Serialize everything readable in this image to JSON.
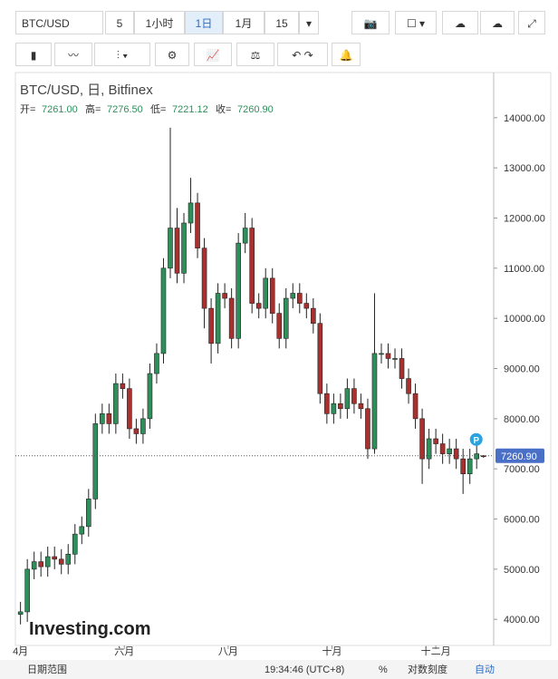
{
  "toolbar": {
    "symbol": "BTC/USD",
    "interval_1": "5",
    "interval_2": "1小时",
    "interval_3": "1日",
    "interval_4": "1月",
    "interval_5": "15"
  },
  "footer": {
    "date_range": "日期范围",
    "time": "19:34:46 (UTC+8)",
    "percent": "%",
    "log_scale": "对数刻度",
    "auto": "自动"
  },
  "watermark": "Investing.com",
  "chart_data": {
    "type": "candlestick",
    "title": "BTC/USD, 日, Bitfinex",
    "ohlc_header": [
      {
        "label": "开=",
        "value": "7261.00"
      },
      {
        "label": "高=",
        "value": "7276.50"
      },
      {
        "label": "低=",
        "value": "7221.12"
      },
      {
        "label": "收=",
        "value": "7260.90"
      }
    ],
    "last_price_label": "7260.90",
    "marker_label": "P",
    "up_color": "#2f8f5b",
    "down_color": "#a8312f",
    "xlim": [
      -3,
      278
    ],
    "xticks": [
      {
        "value": 0,
        "label": "4月"
      },
      {
        "value": 61,
        "label": "六月"
      },
      {
        "value": 122,
        "label": "八月"
      },
      {
        "value": 183,
        "label": "十月"
      },
      {
        "value": 244,
        "label": "十二月"
      }
    ],
    "ylim": [
      3480,
      14900
    ],
    "yticks": [
      {
        "value": 4000,
        "label": "4000.00"
      },
      {
        "value": 5000,
        "label": "5000.00"
      },
      {
        "value": 6000,
        "label": "6000.00"
      },
      {
        "value": 7000,
        "label": "7000.00"
      },
      {
        "value": 8000,
        "label": "8000.00"
      },
      {
        "value": 9000,
        "label": "9000.00"
      },
      {
        "value": 10000,
        "label": "10000.00"
      },
      {
        "value": 11000,
        "label": "11000.00"
      },
      {
        "value": 12000,
        "label": "12000.00"
      },
      {
        "value": 13000,
        "label": "13000.00"
      },
      {
        "value": 14000,
        "label": "14000.00"
      }
    ],
    "x": [
      0,
      4,
      8,
      12,
      16,
      20,
      24,
      28,
      32,
      36,
      40,
      44,
      48,
      52,
      56,
      60,
      64,
      68,
      72,
      76,
      80,
      84,
      88,
      92,
      96,
      100,
      104,
      108,
      112,
      116,
      120,
      124,
      128,
      132,
      136,
      140,
      144,
      148,
      152,
      156,
      160,
      164,
      168,
      172,
      176,
      180,
      184,
      188,
      192,
      196,
      200,
      204,
      208,
      212,
      216,
      220,
      224,
      228,
      232,
      236,
      240,
      244,
      248,
      252,
      256,
      260,
      264,
      268,
      272
    ],
    "open": [
      4100,
      4150,
      5000,
      5150,
      5050,
      5250,
      5200,
      5100,
      5300,
      5700,
      5850,
      6400,
      7900,
      8100,
      7900,
      8700,
      8600,
      7800,
      7700,
      8000,
      8900,
      9300,
      11000,
      11800,
      10900,
      11900,
      12300,
      11400,
      10200,
      9500,
      10500,
      10400,
      9600,
      11500,
      11800,
      10300,
      10200,
      10800,
      10100,
      9600,
      10400,
      10500,
      10300,
      10200,
      9900,
      8500,
      8100,
      8300,
      8200,
      8600,
      8300,
      8200,
      7400,
      9300,
      9300,
      9200,
      9200,
      8800,
      8500,
      8000,
      7200,
      7600,
      7500,
      7300,
      7400,
      7200,
      6900,
      7200,
      7261
    ],
    "high": [
      4350,
      5200,
      5350,
      5350,
      5450,
      5450,
      5400,
      5500,
      5900,
      6050,
      6600,
      8100,
      8300,
      8300,
      8900,
      8900,
      8800,
      8000,
      8200,
      9100,
      9500,
      11200,
      13800,
      12200,
      12100,
      12800,
      12500,
      11600,
      10400,
      10700,
      10700,
      10600,
      11700,
      12100,
      12000,
      10500,
      11000,
      11000,
      10300,
      10600,
      10700,
      10700,
      10500,
      10400,
      10100,
      8700,
      8500,
      8500,
      8800,
      8800,
      8500,
      8400,
      10500,
      9500,
      9500,
      9400,
      9400,
      9000,
      8700,
      8200,
      7800,
      7800,
      7700,
      7600,
      7600,
      7400,
      7400,
      7500,
      7276.5
    ],
    "low": [
      3900,
      3950,
      4800,
      4850,
      4850,
      5000,
      4900,
      4900,
      5100,
      5500,
      5650,
      6200,
      7700,
      7700,
      7700,
      8400,
      7600,
      7500,
      7500,
      7800,
      8700,
      9100,
      10800,
      10700,
      10700,
      11700,
      11200,
      9800,
      9100,
      9300,
      10200,
      9400,
      9400,
      11300,
      10100,
      10000,
      10000,
      9900,
      9400,
      9400,
      10200,
      10100,
      10000,
      9700,
      8300,
      7900,
      7900,
      8000,
      8000,
      8100,
      8000,
      7200,
      7300,
      9100,
      9000,
      9000,
      8600,
      8300,
      7800,
      6700,
      7000,
      7300,
      7100,
      7100,
      7000,
      6500,
      6700,
      7000,
      7221.12
    ],
    "close": [
      4150,
      5000,
      5150,
      5050,
      5250,
      5200,
      5100,
      5300,
      5700,
      5850,
      6400,
      7900,
      8100,
      7900,
      8700,
      8600,
      7800,
      7700,
      8000,
      8900,
      9300,
      11000,
      11800,
      10900,
      11900,
      12300,
      11400,
      10200,
      9500,
      10500,
      10400,
      9600,
      11500,
      11800,
      10300,
      10200,
      10800,
      10100,
      9600,
      10400,
      10500,
      10300,
      10200,
      9900,
      8500,
      8100,
      8300,
      8200,
      8600,
      8300,
      8200,
      7400,
      9300,
      9300,
      9200,
      9200,
      8800,
      8500,
      8000,
      7200,
      7600,
      7500,
      7300,
      7400,
      7200,
      6900,
      7200,
      7300,
      7260.9
    ]
  }
}
